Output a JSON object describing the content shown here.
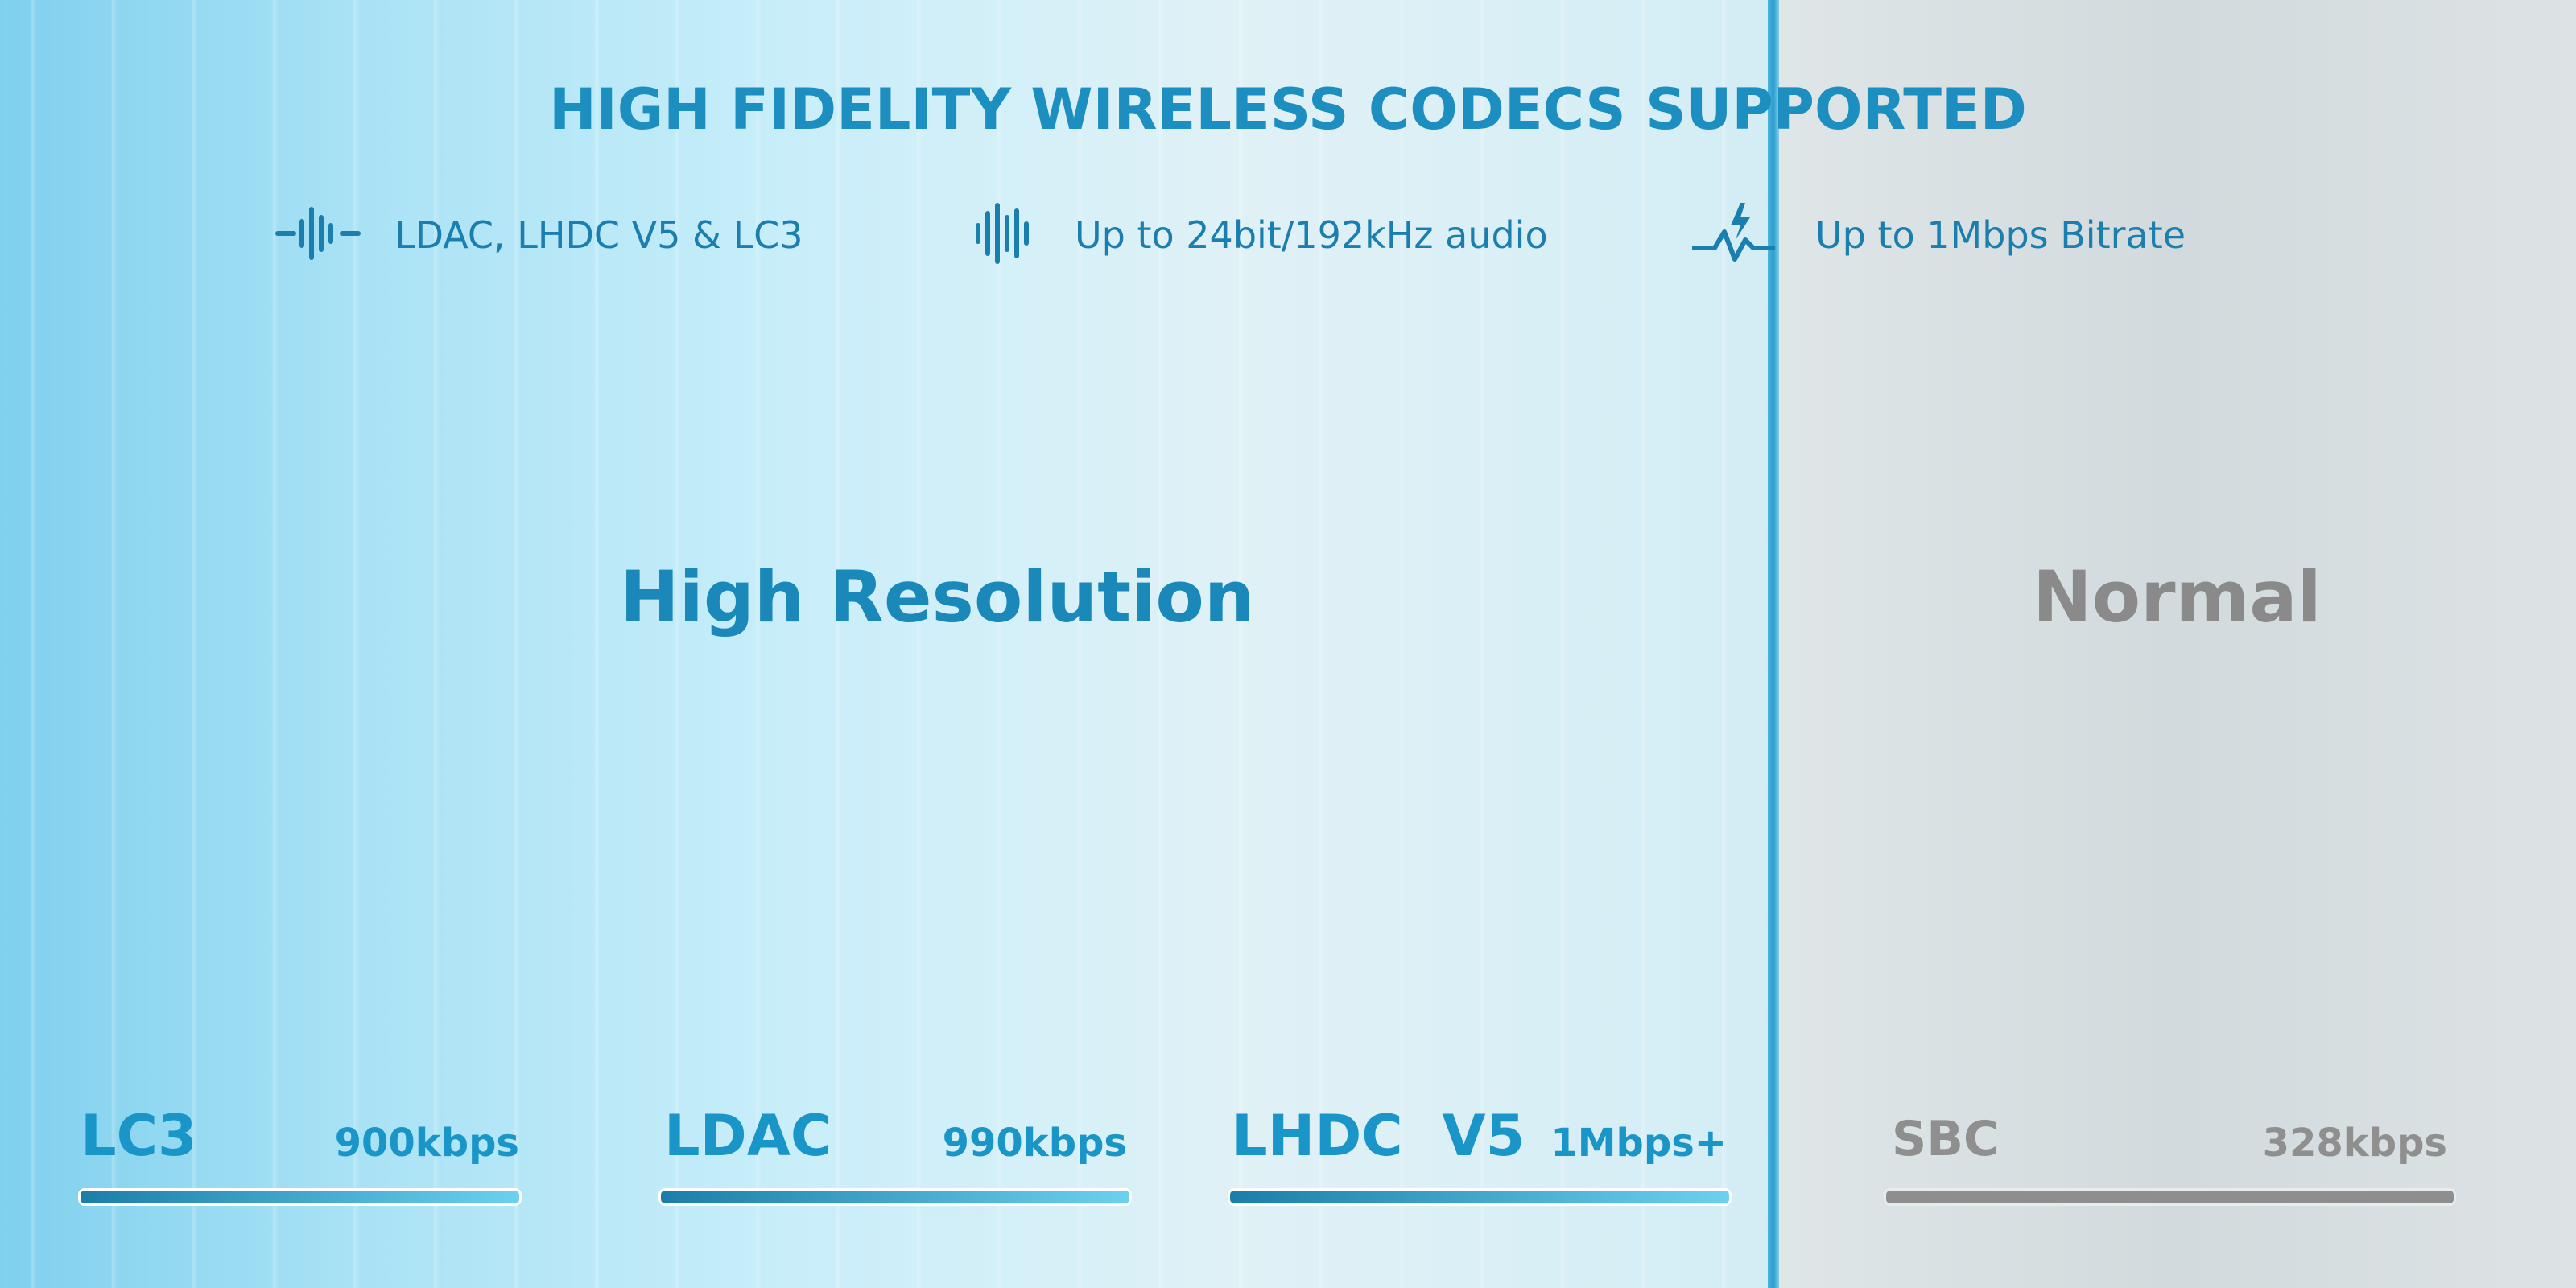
{
  "title": "HIGH FIDELITY WIRELESS CODECS SUPPORTED",
  "features": [
    {
      "text": "LDAC, LHDC V5 & LC3"
    },
    {
      "text": "Up to 24bit/192kHz audio"
    },
    {
      "text": "Up to 1Mbps Bitrate"
    }
  ],
  "sections": [
    {
      "label": "High Resolution",
      "codecs": [
        {
          "name": "LC3",
          "bitrate": "900kbps"
        },
        {
          "name": "LDAC",
          "bitrate": "990kbps"
        },
        {
          "name": "LHDC  V5",
          "bitrate": "1Mbps+"
        }
      ]
    },
    {
      "label": "Normal",
      "codecs": [
        {
          "name": "SBC",
          "bitrate": "328kbps"
        }
      ]
    }
  ]
}
